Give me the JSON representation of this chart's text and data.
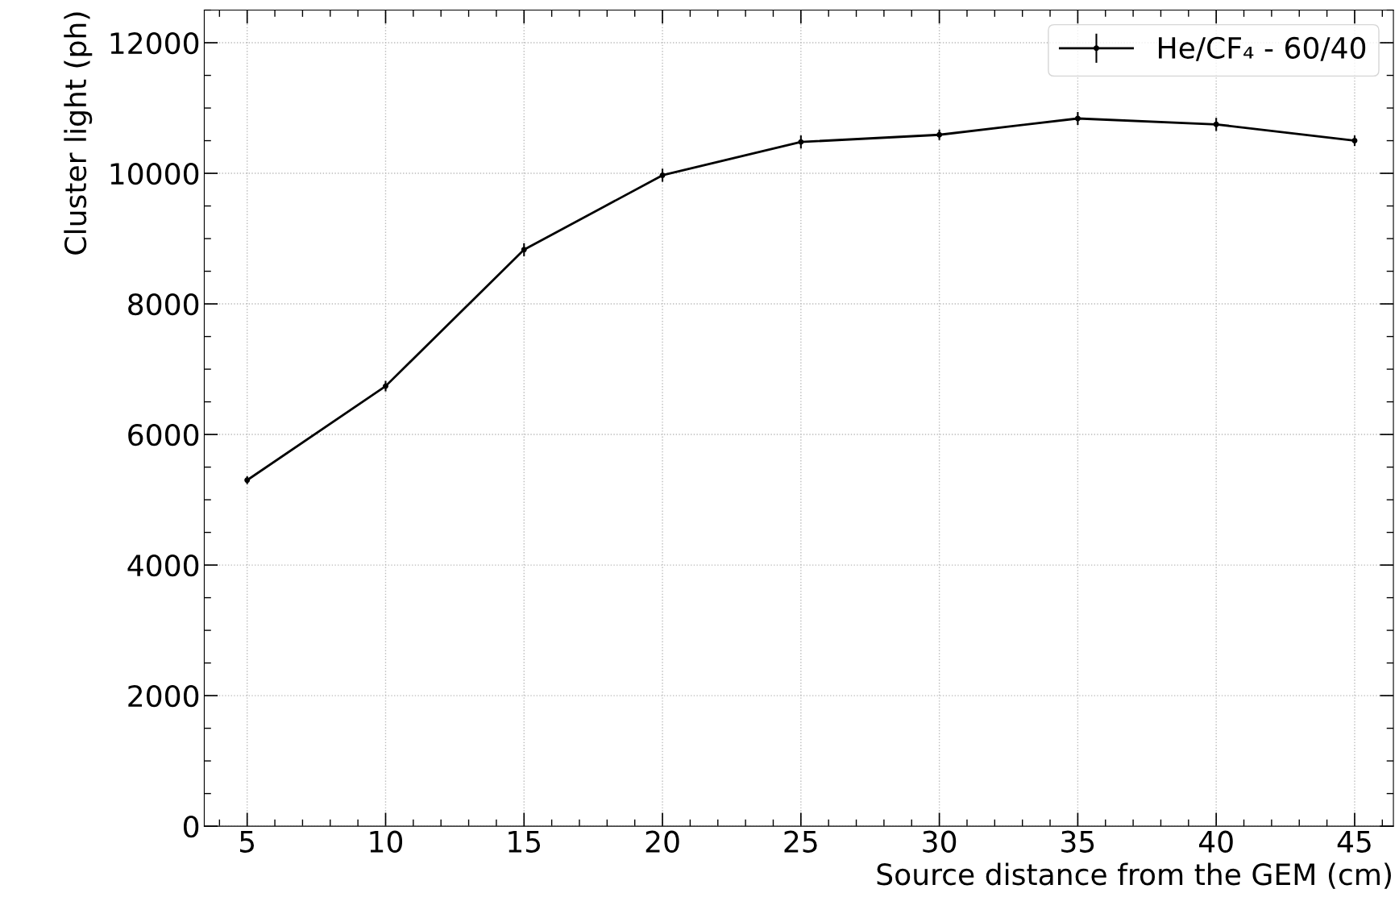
{
  "chart_data": {
    "type": "line",
    "xlabel": "Source distance from the GEM (cm)",
    "ylabel": "Cluster light (ph)",
    "x": [
      5,
      10,
      15,
      20,
      25,
      30,
      35,
      40,
      45
    ],
    "series": [
      {
        "name": "He/CF₄ - 60/40",
        "color": "#000000",
        "values": [
          5300,
          6740,
          8830,
          9970,
          10480,
          10590,
          10840,
          10750,
          10500
        ],
        "errors": [
          60,
          80,
          100,
          100,
          100,
          80,
          100,
          100,
          80
        ]
      }
    ],
    "xlim": [
      3.45,
      46.4
    ],
    "ylim": [
      0,
      12500
    ],
    "xticks": [
      5,
      10,
      15,
      20,
      25,
      30,
      35,
      40,
      45
    ],
    "yticks": [
      0,
      2000,
      4000,
      6000,
      8000,
      10000,
      12000
    ],
    "grid": true,
    "legend": "top right",
    "marker": "circle",
    "line_style": "solid"
  }
}
